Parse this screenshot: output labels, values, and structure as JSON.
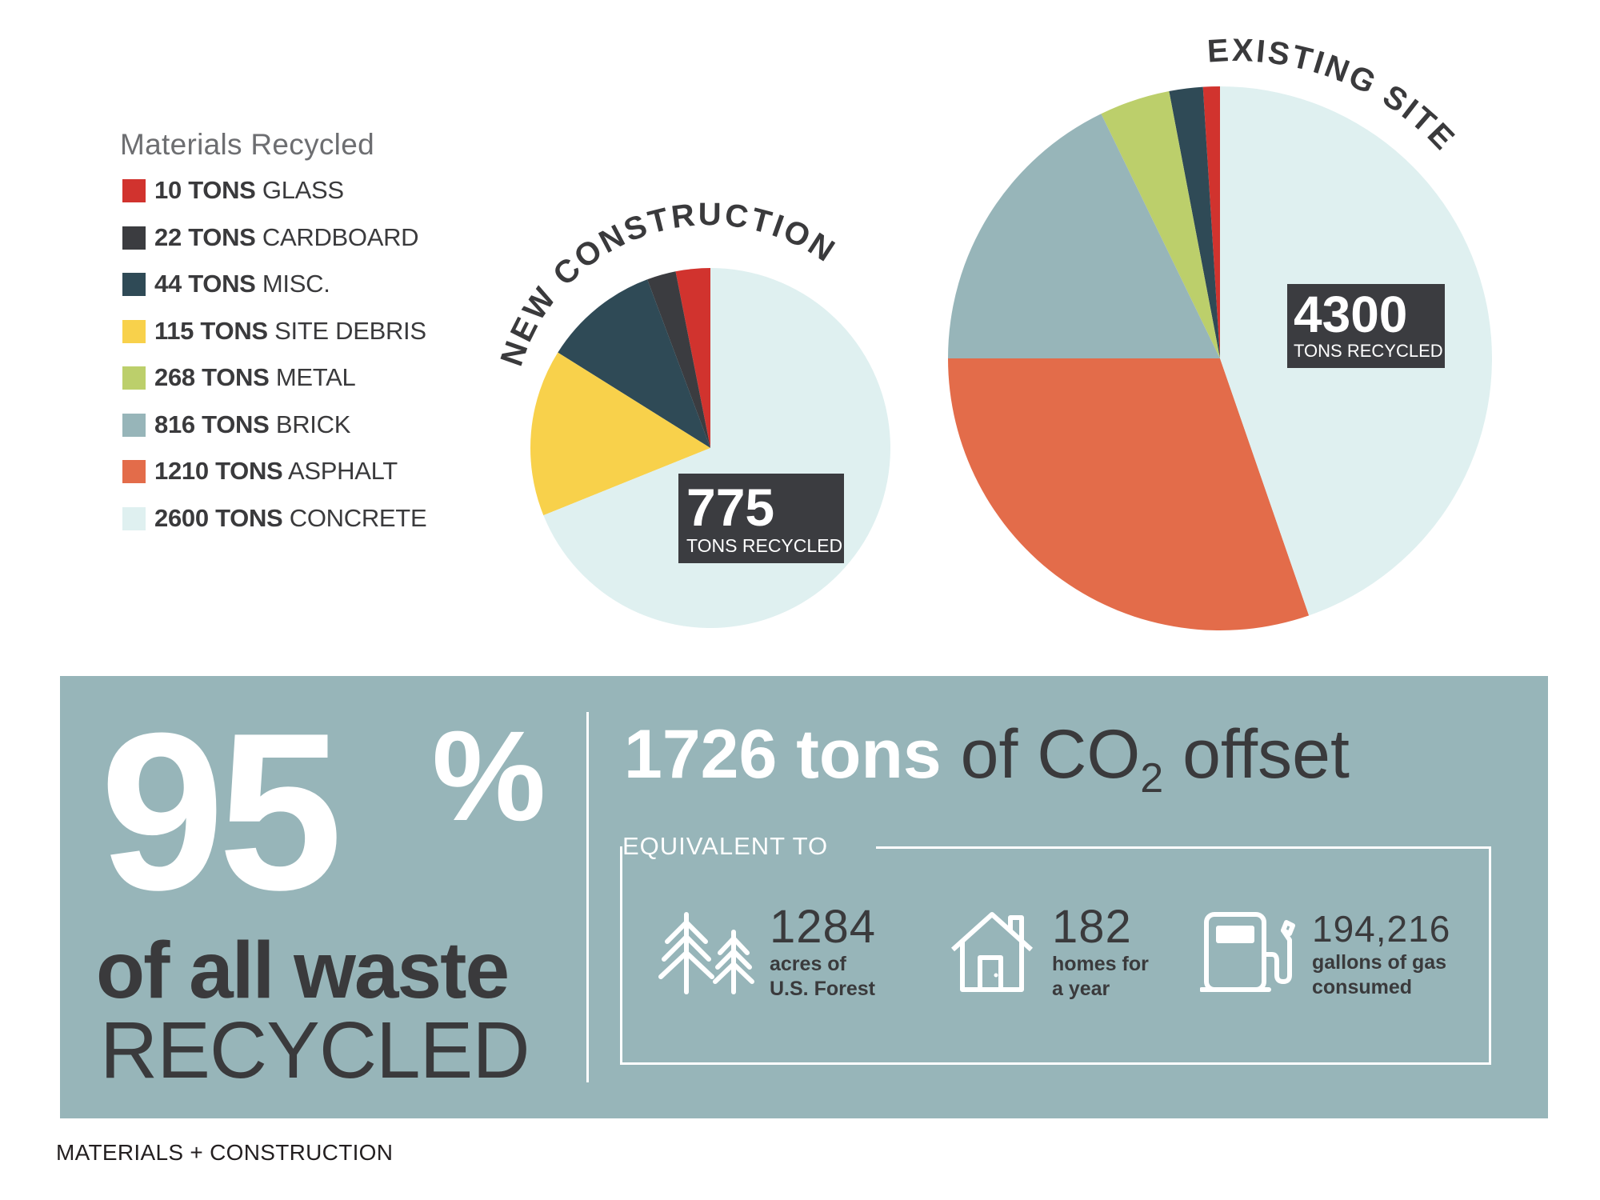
{
  "legend": {
    "title": "Materials Recycled",
    "items": [
      {
        "amount": "10 TONS",
        "material": "GLASS",
        "color": "#d1332e"
      },
      {
        "amount": "22 TONS",
        "material": "CARDBOARD",
        "color": "#3b3c40"
      },
      {
        "amount": "44 TONS",
        "material": "MISC.",
        "color": "#2f4a56"
      },
      {
        "amount": "115 TONS",
        "material": "SITE DEBRIS",
        "color": "#f8d14b"
      },
      {
        "amount": "268 TONS",
        "material": "METAL",
        "color": "#bccf6b"
      },
      {
        "amount": "816 TONS",
        "material": "BRICK",
        "color": "#97b5b9"
      },
      {
        "amount": "1210 TONS",
        "material": "ASPHALT",
        "color": "#e36c4a"
      },
      {
        "amount": "2600 TONS",
        "material": "CONCRETE",
        "color": "#dff0f0"
      }
    ]
  },
  "chart_data": [
    {
      "type": "pie",
      "title": "NEW CONSTRUCTION",
      "total_value": "775",
      "total_label": "TONS RECYCLED",
      "slices": [
        {
          "name": "GLASS",
          "value": 0.031,
          "color": "#d1332e"
        },
        {
          "name": "CARDBOARD",
          "value": 0.026,
          "color": "#3b3c40"
        },
        {
          "name": "MISC.",
          "value": 0.104,
          "color": "#2f4a56"
        },
        {
          "name": "SITE DEBRIS",
          "value": 0.15,
          "color": "#f8d14b"
        },
        {
          "name": "CONCRETE",
          "value": 0.689,
          "color": "#dff0f0"
        }
      ]
    },
    {
      "type": "pie",
      "title": "EXISTING SITE",
      "total_value": "4300",
      "total_label": "TONS RECYCLED",
      "slices": [
        {
          "name": "GLASS",
          "value": 0.01,
          "color": "#d1332e"
        },
        {
          "name": "MISC.",
          "value": 0.02,
          "color": "#2f4a56"
        },
        {
          "name": "METAL",
          "value": 0.042,
          "color": "#bccf6b"
        },
        {
          "name": "BRICK",
          "value": 0.178,
          "color": "#97b5b9"
        },
        {
          "name": "ASPHALT",
          "value": 0.303,
          "color": "#e36c4a"
        },
        {
          "name": "CONCRETE",
          "value": 0.447,
          "color": "#dff0f0"
        }
      ]
    }
  ],
  "stats": {
    "percent_number": "95",
    "percent_sign": "%",
    "waste_line": "of all waste",
    "recycled_line": "RECYCLED",
    "co2_bold": "1726 tons",
    "co2_light_pre": "of CO",
    "co2_sub": "2",
    "co2_light_post": " offset",
    "equivalent_label": "EQUIVALENT TO",
    "items": [
      {
        "number": "1284",
        "line1": "acres of",
        "line2": "U.S. Forest",
        "icon": "trees-icon"
      },
      {
        "number": "182",
        "line1": "homes for",
        "line2": "a year",
        "icon": "house-icon"
      },
      {
        "number": "194,216",
        "line1": "gallons of gas",
        "line2": "consumed",
        "icon": "gas-pump-icon"
      }
    ]
  },
  "footer": "MATERIALS + CONSTRUCTION"
}
